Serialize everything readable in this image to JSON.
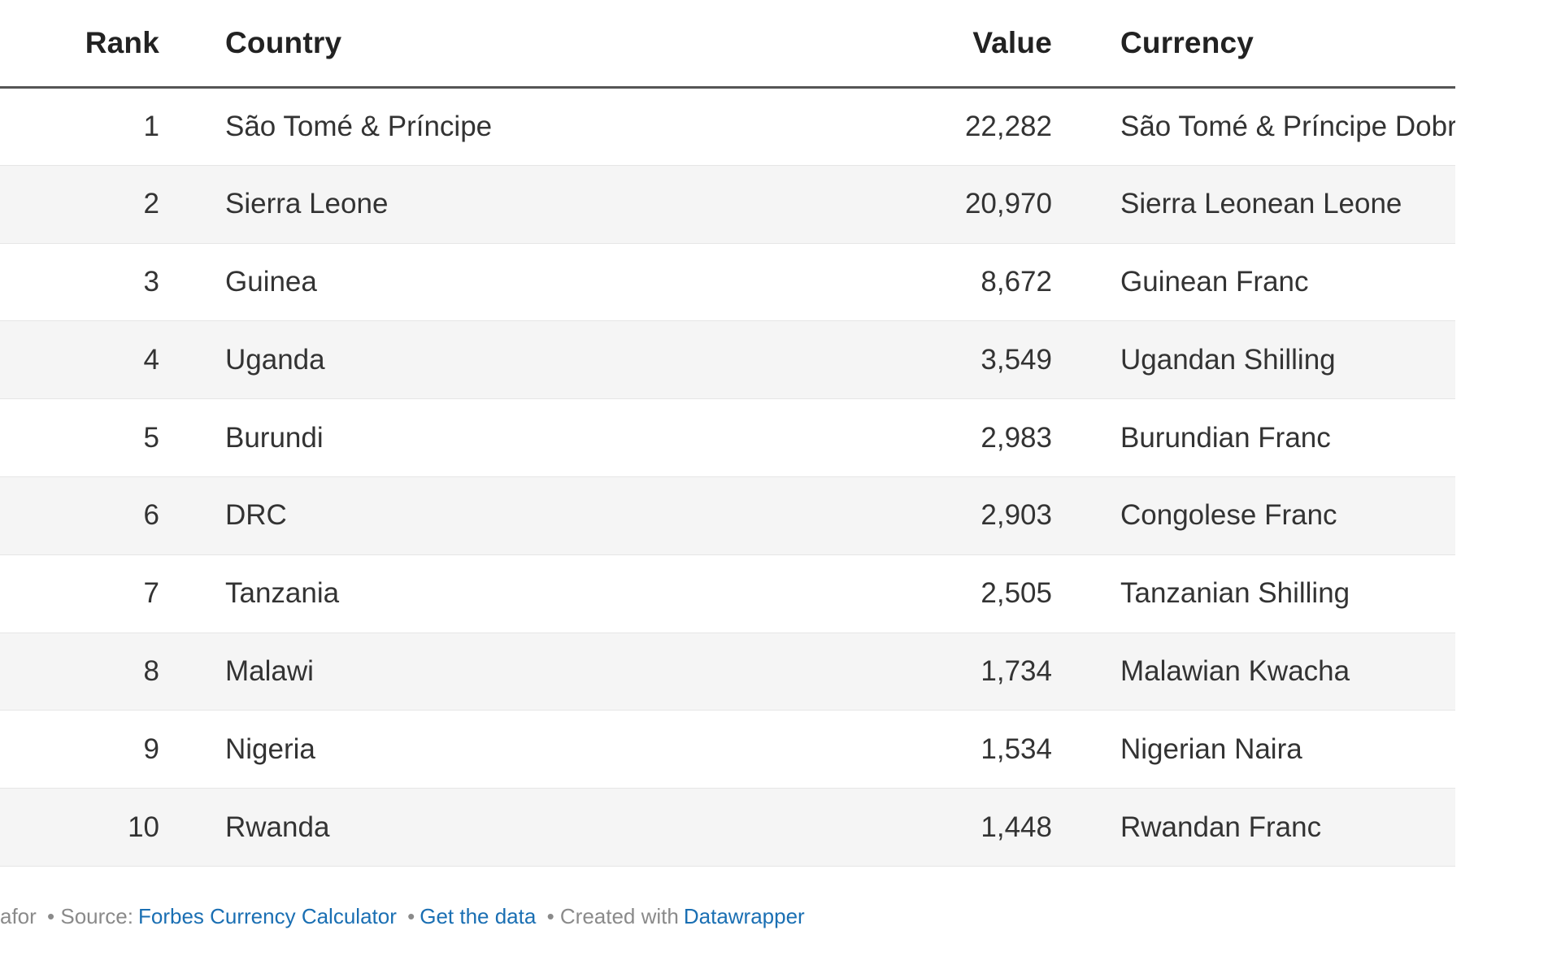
{
  "chart_data": {
    "type": "table",
    "columns": [
      "Rank",
      "Country",
      "Value",
      "Currency"
    ],
    "rows": [
      {
        "rank": "1",
        "country": "São Tomé & Príncipe",
        "value": "22,282",
        "currency": "São Tomé & Príncipe Dobra"
      },
      {
        "rank": "2",
        "country": "Sierra Leone",
        "value": "20,970",
        "currency": "Sierra Leonean Leone"
      },
      {
        "rank": "3",
        "country": "Guinea",
        "value": "8,672",
        "currency": "Guinean Franc"
      },
      {
        "rank": "4",
        "country": "Uganda",
        "value": "3,549",
        "currency": "Ugandan Shilling"
      },
      {
        "rank": "5",
        "country": "Burundi",
        "value": "2,983",
        "currency": "Burundian Franc"
      },
      {
        "rank": "6",
        "country": "DRC",
        "value": "2,903",
        "currency": "Congolese Franc"
      },
      {
        "rank": "7",
        "country": "Tanzania",
        "value": "2,505",
        "currency": "Tanzanian Shilling"
      },
      {
        "rank": "8",
        "country": "Malawi",
        "value": "1,734",
        "currency": "Malawian Kwacha"
      },
      {
        "rank": "9",
        "country": "Nigeria",
        "value": "1,534",
        "currency": "Nigerian Naira"
      },
      {
        "rank": "10",
        "country": "Rwanda",
        "value": "1,448",
        "currency": "Rwandan Franc"
      }
    ]
  },
  "footer": {
    "prefix": "afor",
    "source_label": "• Source:",
    "source_link": "Forbes Currency Calculator",
    "sep1": "•",
    "get_data_link": "Get the data",
    "sep2": "• Created with",
    "created_with_link": "Datawrapper"
  },
  "colors": {
    "link": "#1a6fb3",
    "header_rule": "#555555",
    "stripe": "#f5f5f5"
  }
}
